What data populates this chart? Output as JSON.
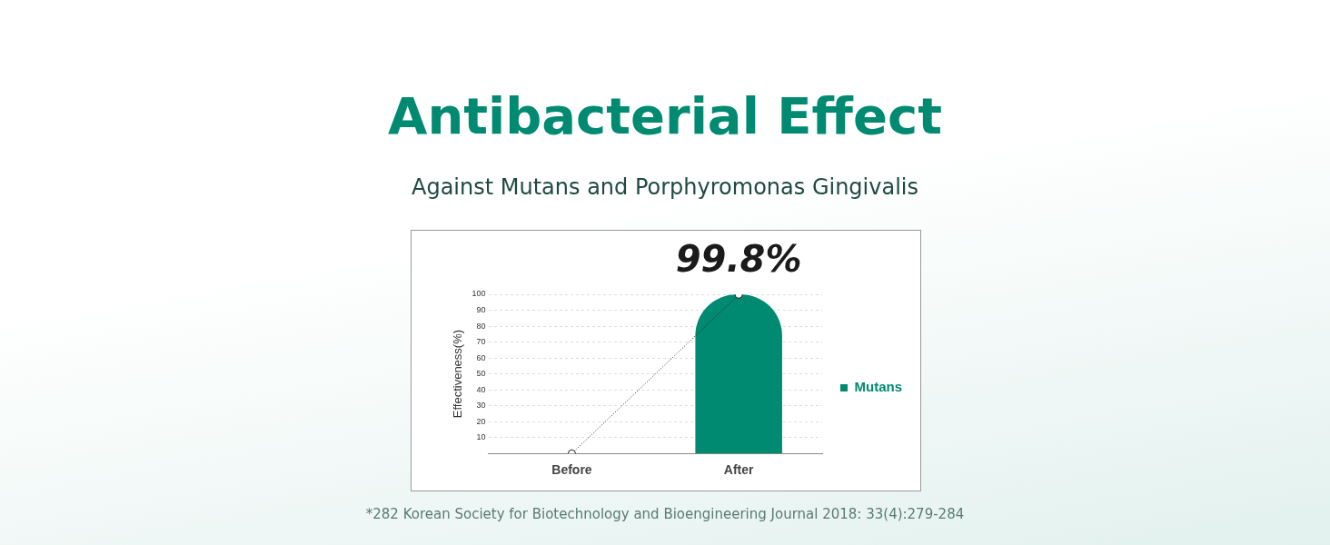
{
  "chart_data": {
    "type": "bar",
    "title": "Antibacterial Effect",
    "subtitle": "Against Mutans and Porphyromonas Gingivalis",
    "ylabel": "Effectiveness(%)",
    "categories": [
      "Before",
      "After"
    ],
    "series": [
      {
        "name": "Mutans",
        "color": "#008a72",
        "values": [
          0,
          99.8
        ],
        "value_labels": [
          null,
          "99.8%"
        ]
      },
      {
        "type": "line",
        "color": "#222222",
        "values": [
          0,
          99.8
        ],
        "marker": "circle",
        "line_style": "dotted"
      }
    ],
    "ylim": [
      0,
      100
    ],
    "yticks": [
      10,
      20,
      30,
      40,
      50,
      60,
      70,
      80,
      90,
      100
    ],
    "grid": "y",
    "legend": "right",
    "annotations": [
      "*282 Korean Society for Biotechnology and Bioengineering Journal 2018: 33(4):279-284"
    ]
  }
}
